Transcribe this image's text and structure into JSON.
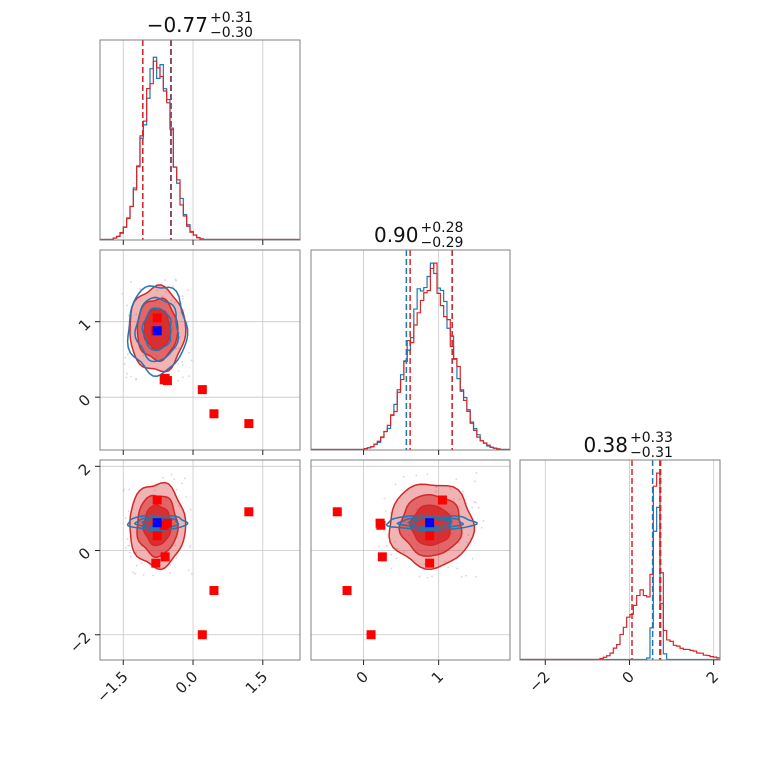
{
  "chart_data": {
    "type": "corner",
    "colors": {
      "red": "#d62728",
      "blue": "#1f77b4",
      "point_red": "#ff0000",
      "point_blue": "#0000ff",
      "grid": "#c8c8c8",
      "frame": "#808080"
    },
    "parameters": [
      {
        "title_main": "−0.77",
        "title_upper": "+0.31",
        "title_lower": "−0.30",
        "range": [
          -2.0,
          2.3
        ],
        "ticks": [
          -1.5,
          0.0,
          1.5
        ],
        "tick_labels": [
          "−1.5",
          "0.0",
          "1.5"
        ]
      },
      {
        "title_main": "0.90",
        "title_upper": "+0.28",
        "title_lower": "−0.29",
        "range": [
          -0.7,
          1.95
        ],
        "ticks": [
          0,
          1
        ],
        "tick_labels": [
          "0",
          "1"
        ]
      },
      {
        "title_main": "0.38",
        "title_upper": "+0.33",
        "title_lower": "−0.31",
        "range": [
          -2.6,
          2.15
        ],
        "ticks": [
          -2,
          0,
          2
        ],
        "tick_labels": [
          "−2",
          "0",
          "2"
        ]
      }
    ],
    "quantile_lines": {
      "red": [
        [
          -1.08,
          -0.47
        ],
        [
          0.62,
          1.18
        ],
        [
          0.06,
          0.74
        ]
      ],
      "blue": [
        [
          -1.08,
          -0.48
        ],
        [
          0.57,
          1.18
        ],
        [
          0.55,
          0.72
        ]
      ]
    },
    "marginals": {
      "red": [
        {
          "mean": -0.77,
          "sd": 0.3
        },
        {
          "mean": 0.9,
          "sd": 0.28
        },
        {
          "mean": 0.45,
          "sd": 0.32
        }
      ],
      "blue": [
        {
          "mean": -0.77,
          "sd": 0.3
        },
        {
          "mean": 0.9,
          "sd": 0.28
        },
        {
          "mean": 0.66,
          "sd": 0.07
        }
      ]
    },
    "truth": {
      "point": [
        -0.77,
        0.88,
        0.66
      ]
    },
    "samples_red": [
      [
        -0.77,
        1.05,
        1.2
      ],
      [
        -0.62,
        0.23,
        0.6
      ],
      [
        -0.55,
        0.22,
        0.65
      ],
      [
        0.2,
        0.1,
        -2.0
      ],
      [
        0.45,
        -0.22,
        -0.95
      ],
      [
        1.2,
        -0.35,
        0.92
      ],
      [
        -0.77,
        0.88,
        0.35
      ],
      [
        -0.8,
        0.88,
        -0.3
      ],
      [
        -0.6,
        0.25,
        -0.15
      ]
    ]
  }
}
